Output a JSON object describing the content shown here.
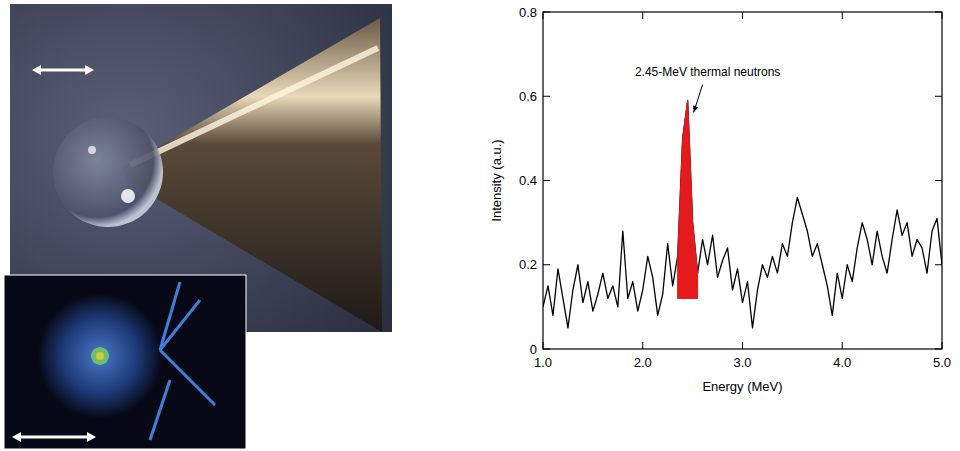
{
  "chart_data": {
    "type": "line",
    "annotation": "2.45-MeV thermal neutrons",
    "x_label": "Energy (MeV)",
    "y_label": "Intensity (a.u.)",
    "x": [
      1,
      1.05,
      1.1,
      1.15,
      1.2,
      1.25,
      1.3,
      1.35,
      1.4,
      1.45,
      1.5,
      1.55,
      1.6,
      1.65,
      1.7,
      1.75,
      1.8,
      1.85,
      1.9,
      1.95,
      2,
      2.05,
      2.1,
      2.15,
      2.2,
      2.25,
      2.3,
      2.35,
      2.4,
      2.45,
      2.5,
      2.55,
      2.6,
      2.65,
      2.7,
      2.75,
      2.8,
      2.85,
      2.9,
      2.95,
      3,
      3.05,
      3.1,
      3.15,
      3.2,
      3.25,
      3.3,
      3.35,
      3.4,
      3.45,
      3.5,
      3.55,
      3.6,
      3.65,
      3.7,
      3.75,
      3.8,
      3.85,
      3.9,
      3.95,
      4,
      4.05,
      4.1,
      4.15,
      4.2,
      4.25,
      4.3,
      4.35,
      4.4,
      4.45,
      4.5,
      4.55,
      4.6,
      4.65,
      4.7,
      4.75,
      4.8,
      4.85,
      4.9,
      4.95,
      5
    ],
    "series": [
      {
        "color": "#000000",
        "values": [
          0.1,
          0.15,
          0.08,
          0.19,
          0.12,
          0.05,
          0.14,
          0.2,
          0.11,
          0.16,
          0.09,
          0.13,
          0.18,
          0.12,
          0.15,
          0.1,
          0.28,
          0.12,
          0.16,
          0.09,
          0.14,
          0.22,
          0.17,
          0.08,
          0.13,
          0.25,
          0.15,
          0.22,
          0.5,
          0.59,
          0.3,
          0.18,
          0.26,
          0.2,
          0.27,
          0.17,
          0.21,
          0.24,
          0.14,
          0.19,
          0.11,
          0.16,
          0.05,
          0.14,
          0.2,
          0.17,
          0.22,
          0.18,
          0.25,
          0.22,
          0.3,
          0.36,
          0.32,
          0.28,
          0.22,
          0.25,
          0.2,
          0.15,
          0.08,
          0.18,
          0.12,
          0.2,
          0.16,
          0.24,
          0.3,
          0.26,
          0.2,
          0.28,
          0.22,
          0.18,
          0.26,
          0.33,
          0.27,
          0.3,
          0.22,
          0.26,
          0.24,
          0.18,
          0.28,
          0.31,
          0.2
        ]
      },
      {
        "type": "area",
        "color": "#e41a1c",
        "base": 0.12,
        "x": [
          2.35,
          2.4,
          2.45,
          2.5,
          2.55
        ],
        "values": [
          0.22,
          0.5,
          0.59,
          0.3,
          0.18
        ]
      }
    ],
    "xlim": [
      1,
      5
    ],
    "ylim": [
      0,
      0.8
    ],
    "xticks": [
      {
        "value": 1,
        "label": "1.0"
      },
      {
        "value": 2,
        "label": "2.0"
      },
      {
        "value": 3,
        "label": "3.0"
      },
      {
        "value": 4,
        "label": "4.0"
      },
      {
        "value": 5,
        "label": "5.0"
      }
    ],
    "yticks": [
      0,
      0.2,
      0.4,
      0.6,
      0.8
    ],
    "grid": false
  }
}
